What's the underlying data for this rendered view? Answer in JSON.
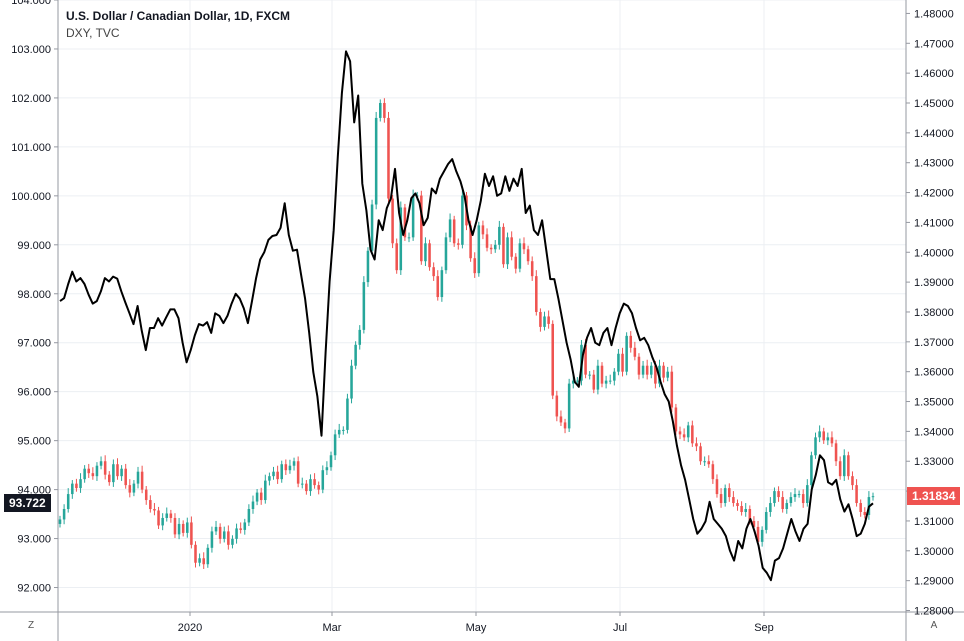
{
  "header": {
    "title": "U.S. Dollar / Canadian Dollar, 1D, FXCM",
    "overlay": "DXY, TVC"
  },
  "corner_left": "Z",
  "corner_right": "A",
  "colors": {
    "up": "#26a69a",
    "down": "#ef5350",
    "dxy": "#000000",
    "grid": "#eceff3"
  },
  "chart_data": {
    "type": "candlestick+line",
    "x_ticks": [
      "2020",
      "Mar",
      "May",
      "Jul",
      "Sep"
    ],
    "left_axis": {
      "ylim": [
        91.5,
        104.0
      ],
      "ticks": [
        "92.000",
        "93.000",
        "94.000",
        "95.000",
        "96.000",
        "97.000",
        "98.000",
        "99.000",
        "100.000",
        "101.000",
        "102.000",
        "103.000",
        "104.000"
      ]
    },
    "right_axis": {
      "ylim": [
        1.2795,
        1.4845
      ],
      "ticks": [
        "1.28000",
        "1.29000",
        "1.30000",
        "1.31000",
        "1.32000",
        "1.33000",
        "1.34000",
        "1.35000",
        "1.36000",
        "1.37000",
        "1.38000",
        "1.39000",
        "1.40000",
        "1.41000",
        "1.42000",
        "1.43000",
        "1.44000",
        "1.45000",
        "1.46000",
        "1.47000",
        "1.48000"
      ]
    },
    "last_values": {
      "dxy": "93.722",
      "usdcad": "1.31834"
    },
    "series": [
      {
        "name": "U.S. Dollar / Canadian Dollar",
        "axis": "right",
        "kind": "candles",
        "values": [
          1.3105,
          1.314,
          1.319,
          1.3225,
          1.321,
          1.324,
          1.3275,
          1.326,
          1.325,
          1.3285,
          1.33,
          1.3255,
          1.323,
          1.329,
          1.325,
          1.3275,
          1.322,
          1.3195,
          1.3225,
          1.3265,
          1.3205,
          1.317,
          1.314,
          1.3135,
          1.3085,
          1.311,
          1.3125,
          1.311,
          1.3055,
          1.309,
          1.306,
          1.3095,
          1.302,
          1.296,
          1.2975,
          1.2955,
          1.301,
          1.3065,
          1.308,
          1.304,
          1.3065,
          1.302,
          1.304,
          1.3075,
          1.307,
          1.3095,
          1.314,
          1.3165,
          1.3195,
          1.317,
          1.3235,
          1.325,
          1.3265,
          1.324,
          1.329,
          1.327,
          1.3285,
          1.33,
          1.3225,
          1.3225,
          1.32,
          1.324,
          1.322,
          1.3205,
          1.327,
          1.328,
          1.332,
          1.339,
          1.3405,
          1.3405,
          1.351,
          1.362,
          1.369,
          1.374,
          1.39,
          1.4005,
          1.416,
          1.445,
          1.45,
          1.445,
          1.418,
          1.403,
          1.394,
          1.415,
          1.405,
          1.405,
          1.419,
          1.419,
          1.397,
          1.403,
          1.395,
          1.392,
          1.385,
          1.394,
          1.405,
          1.411,
          1.403,
          1.4025,
          1.419,
          1.409,
          1.398,
          1.393,
          1.409,
          1.406,
          1.4015,
          1.401,
          1.4025,
          1.4085,
          1.396,
          1.405,
          1.3985,
          1.3945,
          1.403,
          1.401,
          1.397,
          1.392,
          1.38,
          1.375,
          1.3785,
          1.376,
          1.352,
          1.345,
          1.343,
          1.341,
          1.356,
          1.357,
          1.357,
          1.369,
          1.359,
          1.359,
          1.354,
          1.362,
          1.356,
          1.357,
          1.357,
          1.36,
          1.366,
          1.36,
          1.372,
          1.368,
          1.365,
          1.359,
          1.362,
          1.359,
          1.362,
          1.356,
          1.362,
          1.358,
          1.36,
          1.348,
          1.34,
          1.339,
          1.338,
          1.342,
          1.336,
          1.335,
          1.33,
          1.33,
          1.329,
          1.324,
          1.319,
          1.316,
          1.321,
          1.318,
          1.316,
          1.315,
          1.313,
          1.314,
          1.31,
          1.308,
          1.303,
          1.307,
          1.313,
          1.316,
          1.32,
          1.318,
          1.314,
          1.316,
          1.318,
          1.319,
          1.319,
          1.316,
          1.322,
          1.332,
          1.338,
          1.34,
          1.337,
          1.338,
          1.336,
          1.33,
          1.325,
          1.332,
          1.325,
          1.322,
          1.316,
          1.313,
          1.312,
          1.318,
          1.3183
        ]
      },
      {
        "name": "DXY",
        "axis": "left",
        "kind": "line",
        "values": [
          97.85,
          97.91,
          98.2,
          98.45,
          98.25,
          98.32,
          98.2,
          97.98,
          97.8,
          97.85,
          98.05,
          98.32,
          98.25,
          98.35,
          98.31,
          98.05,
          97.82,
          97.6,
          97.38,
          97.75,
          97.25,
          96.85,
          97.3,
          97.3,
          97.5,
          97.35,
          97.52,
          97.68,
          97.68,
          97.5,
          97.0,
          96.6,
          96.85,
          97.15,
          97.38,
          97.35,
          97.42,
          97.2,
          97.6,
          97.55,
          97.4,
          97.55,
          97.8,
          98.0,
          97.9,
          97.7,
          97.4,
          97.85,
          98.32,
          98.7,
          98.85,
          99.1,
          99.18,
          99.2,
          99.35,
          99.85,
          99.2,
          98.88,
          98.9,
          98.4,
          97.9,
          97.2,
          96.4,
          95.9,
          95.1,
          96.8,
          98.25,
          99.3,
          100.8,
          102.1,
          102.95,
          102.75,
          101.5,
          102.05,
          100.25,
          99.7,
          98.9,
          98.7,
          99.5,
          99.3,
          99.75,
          99.95,
          100.55,
          99.65,
          99.2,
          99.5,
          99.95,
          100.05,
          99.85,
          99.4,
          99.55,
          100.15,
          100.05,
          100.35,
          100.5,
          100.65,
          100.75,
          100.5,
          100.3,
          100.0,
          99.5,
          99.2,
          99.5,
          99.9,
          100.45,
          100.2,
          100.4,
          100.0,
          100.05,
          100.4,
          100.1,
          100.35,
          100.2,
          100.55,
          99.65,
          99.8,
          99.3,
          99.2,
          99.5,
          98.9,
          98.3,
          98.3,
          97.9,
          97.45,
          97.0,
          96.65,
          96.2,
          96.1,
          96.75,
          97.1,
          97.3,
          97.0,
          96.95,
          97.2,
          97.3,
          96.95,
          97.3,
          97.6,
          97.8,
          97.75,
          97.6,
          97.3,
          97.05,
          97.1,
          96.95,
          96.7,
          96.5,
          96.2,
          95.95,
          95.8,
          95.4,
          94.9,
          94.5,
          94.2,
          93.8,
          93.4,
          93.1,
          93.2,
          93.35,
          93.75,
          93.4,
          93.3,
          93.2,
          93.05,
          92.75,
          92.55,
          92.95,
          92.8,
          93.2,
          93.4,
          93.15,
          92.85,
          92.4,
          92.3,
          92.15,
          92.55,
          92.6,
          92.8,
          93.1,
          93.4,
          93.15,
          92.95,
          93.2,
          93.3,
          94.0,
          94.3,
          94.7,
          94.6,
          94.15,
          94.1,
          94.2,
          93.8,
          93.55,
          93.7,
          93.4,
          93.05,
          93.1,
          93.3,
          93.65,
          93.72
        ]
      }
    ]
  }
}
